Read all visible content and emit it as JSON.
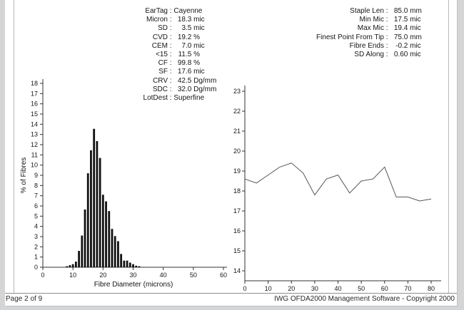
{
  "footer": {
    "page_number": "Page 2 of 9",
    "copyright": "IWG OFDA2000 Management Software - Copyright 2000"
  },
  "stats_left": {
    "rows": [
      {
        "label": "EarTag",
        "value": "Cayenne",
        "unit": "",
        "text": true
      },
      {
        "label": "Micron",
        "value": "18.3",
        "unit": "mic"
      },
      {
        "label": "SD",
        "value": "3.5",
        "unit": "mic"
      },
      {
        "label": "CVD",
        "value": "19.2",
        "unit": "%"
      },
      {
        "label": "CEM",
        "value": "7.0",
        "unit": "mic"
      },
      {
        "label": "<15",
        "value": "11.5",
        "unit": "%"
      },
      {
        "label": "CF",
        "value": "99.8",
        "unit": "%"
      },
      {
        "label": "SF",
        "value": "17.6",
        "unit": "mic"
      },
      {
        "label": "CRV",
        "value": "42.5",
        "unit": "Dg/mm"
      },
      {
        "label": "SDC",
        "value": "32.0",
        "unit": "Dg/mm"
      },
      {
        "label": "LotDest",
        "value": "Superfine",
        "unit": "",
        "text": true
      }
    ]
  },
  "stats_right": {
    "rows": [
      {
        "label": "Staple Len",
        "value": "85.0",
        "unit": "mm"
      },
      {
        "label": "Min Mic",
        "value": "17.5",
        "unit": "mic"
      },
      {
        "label": "Max Mic",
        "value": "19.4",
        "unit": "mic"
      },
      {
        "label": "Finest Point From Tip",
        "value": "75.0",
        "unit": "mm"
      },
      {
        "label": "Fibre Ends",
        "value": "-0.2",
        "unit": "mic"
      },
      {
        "label": "SD Along",
        "value": "0.60",
        "unit": "mic"
      }
    ]
  },
  "chart_data": [
    {
      "type": "bar",
      "title": "Fibre diameter distribution histogram",
      "xlabel": "Fibre Diameter (microns)",
      "ylabel": "% of Fibres",
      "xlim": [
        0,
        60
      ],
      "ylim": [
        0,
        18
      ],
      "x_ticks": [
        0,
        10,
        20,
        30,
        40,
        50,
        60
      ],
      "y_tick_step": 1,
      "grid": false,
      "bar_color": "#111111",
      "categories": [
        8,
        9,
        10,
        11,
        12,
        13,
        14,
        15,
        16,
        17,
        18,
        19,
        20,
        21,
        22,
        23,
        24,
        25,
        26,
        27,
        28,
        29,
        30,
        31,
        32
      ],
      "values": [
        0.1,
        0.2,
        0.3,
        0.55,
        1.6,
        3.1,
        5.65,
        9.2,
        11.45,
        13.55,
        12.35,
        10.7,
        7.1,
        6.45,
        5.5,
        3.75,
        3.05,
        2.55,
        1.3,
        0.65,
        0.65,
        0.45,
        0.3,
        0.15,
        0.1
      ]
    },
    {
      "type": "line",
      "title": "Micron profile along staple (mm from tip)",
      "xlabel": "",
      "ylabel": "",
      "xlim": [
        0,
        85
      ],
      "ylim": [
        14,
        23
      ],
      "x_ticks": [
        0,
        10,
        20,
        30,
        40,
        50,
        60,
        70,
        80
      ],
      "y_tick_step": 1,
      "grid": false,
      "line_color": "#555555",
      "x": [
        0,
        5,
        10,
        15,
        20,
        25,
        30,
        35,
        40,
        45,
        50,
        55,
        60,
        65,
        70,
        75,
        80
      ],
      "values": [
        18.6,
        18.4,
        18.8,
        19.2,
        19.4,
        18.9,
        17.8,
        18.6,
        18.8,
        17.9,
        18.5,
        18.6,
        19.2,
        17.7,
        17.7,
        17.5,
        17.6
      ]
    }
  ]
}
